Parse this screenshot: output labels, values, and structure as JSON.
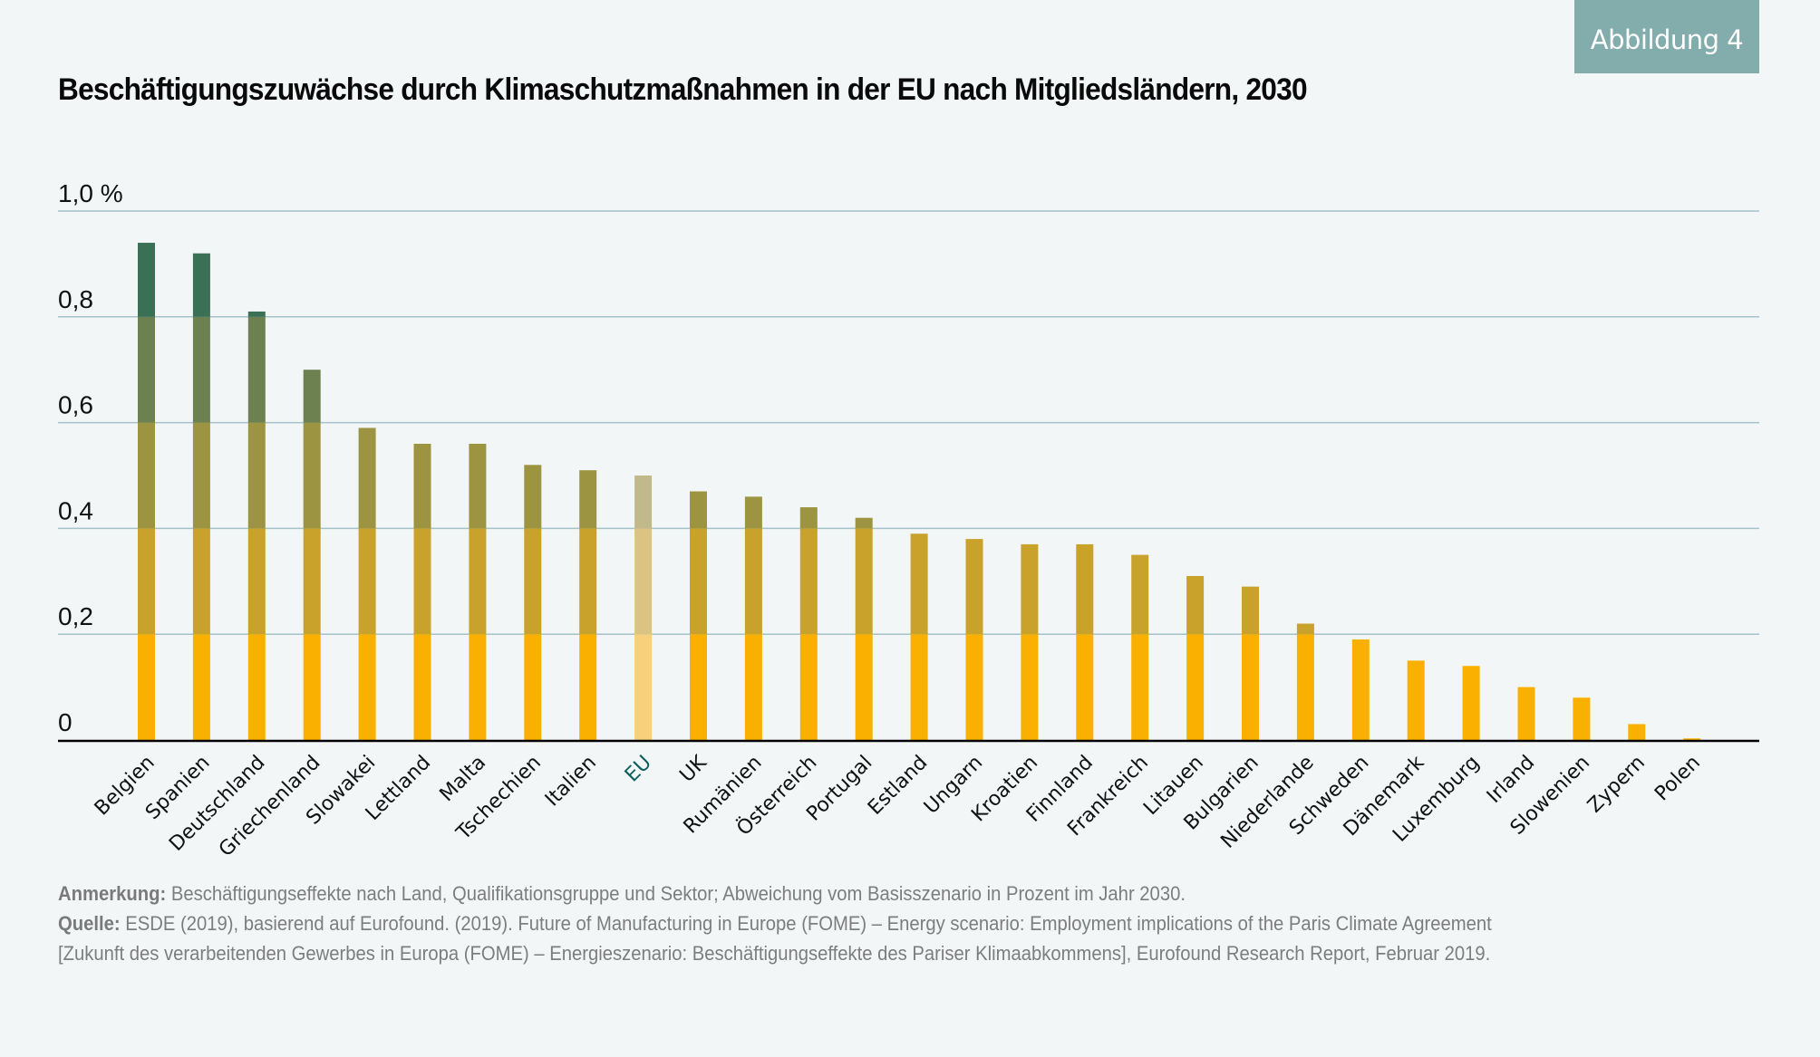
{
  "badge": "Abbildung 4",
  "title": "Beschäftigungszuwächse durch Klimaschutzmaßnahmen in der EU nach Mitgliedsländern, 2030",
  "footer": {
    "note_label": "Anmerkung:",
    "note_text": "Beschäftigungseffekte nach Land, Qualifikationsgruppe und Sektor; Abweichung vom Basisszenario in Prozent im Jahr 2030.",
    "source_label": "Quelle:",
    "source_text": "ESDE (2019), basierend auf Eurofound. (2019). Future of Manufacturing in Europe (FOME) – Energy scenario: Employment implications of the Paris Climate Agreement",
    "source_text_2": "[Zukunft des verarbeitenden Gewerbes in Europa (FOME) – Energieszenario: Beschäftigungseffekte des Pariser Klimaabkommens], Eurofound Research Report, Februar 2019."
  },
  "colors": {
    "background": "#f2f6f7",
    "badge": "#83acad",
    "gridline": "#a3c3c8",
    "axis": "#000000",
    "eu_label": "#0b5f5e",
    "bands": [
      "#f9b000",
      "#c9a22c",
      "#9d9441",
      "#6d8150",
      "#3a7156"
    ],
    "bands_eu": [
      "#f8cf7a",
      "#dbc383",
      "#c0b98a",
      "#a9b38f",
      "#8fa898"
    ]
  },
  "chart_data": {
    "type": "bar",
    "title": "Beschäftigungszuwächse durch Klimaschutzmaßnahmen in der EU nach Mitgliedsländern, 2030",
    "xlabel": "",
    "ylabel": "%",
    "ylim": [
      0,
      1.0
    ],
    "yticks": [
      0,
      0.2,
      0.4,
      0.6,
      0.8,
      1.0
    ],
    "ytick_labels": [
      "0",
      "0,2",
      "0,4",
      "0,6",
      "0,8",
      "1,0 %"
    ],
    "grid": true,
    "legend": "none",
    "highlight_category": "EU",
    "color_bands": "bar segments colored by 0.2-step value band (yellow to dark green)",
    "categories": [
      "Belgien",
      "Spanien",
      "Deutschland",
      "Griechenland",
      "Slowakei",
      "Lettland",
      "Malta",
      "Tschechien",
      "Italien",
      "EU",
      "UK",
      "Rumänien",
      "Österreich",
      "Portugal",
      "Estland",
      "Ungarn",
      "Kroatien",
      "Finnland",
      "Frankreich",
      "Litauen",
      "Bulgarien",
      "Niederlande",
      "Schweden",
      "Dänemark",
      "Luxemburg",
      "Irland",
      "Slowenien",
      "Zypern",
      "Polen"
    ],
    "values": [
      0.94,
      0.92,
      0.81,
      0.7,
      0.59,
      0.56,
      0.56,
      0.52,
      0.51,
      0.5,
      0.47,
      0.46,
      0.44,
      0.42,
      0.39,
      0.38,
      0.37,
      0.37,
      0.35,
      0.31,
      0.29,
      0.22,
      0.19,
      0.15,
      0.14,
      0.1,
      0.08,
      0.03,
      0.003
    ]
  }
}
